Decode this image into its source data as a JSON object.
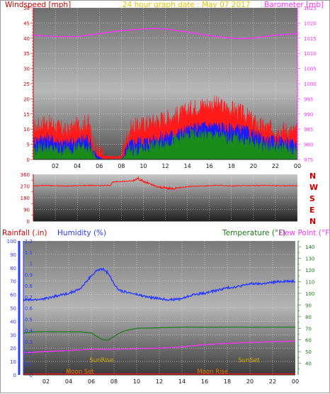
{
  "header": {
    "left_title": "Windspeed [mph]",
    "center_title": "24 hour graph date : May 07 2017",
    "right_title": "Barometer [mb]"
  },
  "colors": {
    "wind_axis": "#cc0000",
    "gust_red": "#ff1a1a",
    "wind_blue": "#1a1aff",
    "wind_green": "#1a8c1a",
    "barometer": "#ff33ff",
    "date_text": "#e6c200",
    "humidity": "#2a3aff",
    "temperature": "#1a7a1a",
    "dewpoint": "#ff33ff",
    "sun": "#d4b000",
    "moon": "#e07a00"
  },
  "chart_data": [
    {
      "type": "area",
      "name": "wind-barometer",
      "x_ticks": [
        "02",
        "04",
        "06",
        "08",
        "10",
        "12",
        "14",
        "16",
        "18",
        "20",
        "22",
        "00"
      ],
      "y_left_ticks": [
        0,
        5,
        10,
        15,
        20,
        25,
        30,
        35,
        40,
        45,
        50
      ],
      "ylim_left": [
        0,
        50
      ],
      "y_right_ticks": [
        975,
        980,
        985,
        990,
        995,
        1000,
        1005,
        1010,
        1015,
        1020,
        1025
      ],
      "ylim_right": [
        975,
        1025
      ],
      "series": [
        {
          "axis": "left",
          "x": [
            0,
            1,
            2,
            3,
            4,
            5,
            5.4,
            5.8,
            6.5,
            7.5,
            8.0,
            8.3,
            8.8,
            9.5,
            10.5,
            11.5,
            12.5,
            13.5,
            14.5,
            15.5,
            16.5,
            17.5,
            18.5,
            19.5,
            20.5,
            21.5,
            22.5,
            23.5,
            24
          ],
          "values": [
            10,
            12,
            11,
            9,
            11,
            12,
            6,
            3,
            1,
            1,
            1,
            5,
            10,
            11,
            12,
            13,
            14,
            15,
            17,
            18,
            18,
            17,
            16,
            14,
            11,
            10,
            10,
            9,
            9
          ]
        },
        {
          "axis": "left",
          "x": [
            0,
            1,
            2,
            3,
            4,
            5,
            5.4,
            5.8,
            6.5,
            7.5,
            8.0,
            8.3,
            8.8,
            9.5,
            10.5,
            11.5,
            12.5,
            13.5,
            14.5,
            15.5,
            16.5,
            17.5,
            18.5,
            19.5,
            20.5,
            21.5,
            22.5,
            23.5,
            24
          ],
          "values": [
            6,
            7,
            6,
            5,
            6,
            7,
            3,
            1,
            0,
            0,
            0,
            2,
            5,
            6,
            6,
            7,
            8,
            9,
            10,
            11,
            11,
            10,
            10,
            9,
            7,
            6,
            6,
            5,
            5
          ]
        },
        {
          "axis": "left",
          "x": [
            0,
            1,
            2,
            3,
            4,
            5,
            5.4,
            5.8,
            6.5,
            7.5,
            8.0,
            8.3,
            8.8,
            9.5,
            10.5,
            11.5,
            12.5,
            13.5,
            14.5,
            15.5,
            16.5,
            17.5,
            18.5,
            19.5,
            20.5,
            21.5,
            22.5,
            23.5,
            24
          ],
          "values": [
            3,
            4,
            3,
            3,
            4,
            4,
            2,
            0,
            0,
            0,
            0,
            1,
            3,
            3,
            4,
            5,
            6,
            7,
            8,
            8,
            8,
            7,
            7,
            6,
            5,
            4,
            4,
            3,
            3
          ]
        },
        {
          "axis": "right",
          "x": [
            0,
            2,
            4,
            6,
            8,
            10,
            11,
            12,
            14,
            16,
            18,
            19,
            20,
            22,
            24
          ],
          "values": [
            1016,
            1015.5,
            1015.5,
            1016.5,
            1017.5,
            1018,
            1018.2,
            1018,
            1017,
            1015.8,
            1015,
            1014.8,
            1015,
            1016,
            1016.5
          ]
        }
      ]
    },
    {
      "type": "line",
      "name": "wind-direction",
      "x_ticks": [
        "02",
        "04",
        "06",
        "08",
        "10",
        "12",
        "14",
        "16",
        "18",
        "20",
        "22",
        "00"
      ],
      "y_ticks": [
        0,
        90,
        180,
        270,
        360
      ],
      "ylim": [
        0,
        360
      ],
      "y_right_labels": [
        "N",
        "W",
        "S",
        "E",
        "N"
      ],
      "series": [
        {
          "x": [
            0,
            1,
            2,
            3,
            4,
            5,
            6,
            7,
            7.2,
            8,
            9,
            9.5,
            10,
            10.5,
            11,
            11.5,
            12,
            12.5,
            13,
            14,
            15,
            16,
            17,
            18,
            19,
            20,
            21,
            22,
            23,
            24
          ],
          "values": [
            270,
            275,
            272,
            270,
            272,
            275,
            273,
            275,
            300,
            305,
            310,
            330,
            305,
            290,
            270,
            260,
            255,
            250,
            255,
            265,
            270,
            272,
            275,
            270,
            272,
            273,
            275,
            272,
            273,
            272
          ]
        }
      ]
    },
    {
      "type": "line",
      "name": "humidity-temperature",
      "x_ticks": [
        "02",
        "04",
        "06",
        "08",
        "10",
        "12",
        "14",
        "16",
        "18",
        "20",
        "22",
        "00"
      ],
      "rain_ticks": [
        0,
        0.1,
        0.2,
        0.3,
        0.4,
        0.5,
        0.6,
        0.7,
        0.8,
        0.9,
        1,
        1.1,
        1.2
      ],
      "ylim_rain": [
        0,
        1.2
      ],
      "humidity_ticks": [
        0,
        10,
        20,
        30,
        40,
        50,
        60,
        70,
        80,
        90,
        100
      ],
      "ylim_humidity": [
        0,
        100
      ],
      "temp_ticks": [
        40,
        50,
        60,
        70,
        80,
        90,
        100,
        110,
        120,
        130,
        140
      ],
      "ylim_temp": [
        30,
        145
      ],
      "series": [
        {
          "name": "Humidity (%)",
          "axis": "humidity",
          "x": [
            0,
            1,
            2,
            3,
            4,
            5,
            6,
            6.5,
            7,
            7.5,
            8,
            8.5,
            9,
            10,
            11,
            12,
            13,
            14,
            15,
            16,
            17,
            18,
            19,
            20,
            21,
            22,
            23,
            24
          ],
          "values": [
            56,
            56,
            57,
            59,
            61,
            64,
            74,
            78,
            79,
            76,
            68,
            63,
            62,
            60,
            58,
            57,
            56,
            57,
            60,
            61,
            63,
            65,
            66,
            68,
            68,
            69,
            70,
            70
          ]
        },
        {
          "name": "Temperature (°F)",
          "axis": "temp",
          "x": [
            0,
            1,
            2,
            3,
            4,
            5,
            6,
            6.5,
            7,
            7.5,
            8,
            8.5,
            9,
            10,
            12,
            14,
            16,
            18,
            20,
            22,
            24
          ],
          "values": [
            66,
            67,
            67,
            67,
            67,
            67,
            66,
            63,
            60,
            60,
            63,
            66,
            68,
            70,
            70.5,
            71,
            71,
            71,
            71,
            71,
            71
          ]
        },
        {
          "name": "Dew Point (°F)",
          "axis": "temp",
          "x": [
            0,
            2,
            4,
            6,
            8,
            10,
            12,
            14,
            16,
            18,
            20,
            22,
            24
          ],
          "values": [
            49,
            50,
            51,
            52,
            52,
            52.5,
            53,
            54,
            56,
            57,
            58,
            58.5,
            59
          ]
        }
      ],
      "rainfall": {
        "values": [
          0
        ]
      },
      "annotations": [
        {
          "text": "SunRise",
          "hour": 6.9
        },
        {
          "text": "SunSet",
          "hour": 19.9
        },
        {
          "text": "Moon Set",
          "hour": 5.0
        },
        {
          "text": "Moon Rise",
          "hour": 16.7
        }
      ]
    }
  ],
  "bottom_header": {
    "rain_label": "Rainfall (.in)",
    "humidity_label": "Humidity (%)",
    "temp_label": "Temperature (°F)",
    "dew_label": "Dew Point (°F)"
  }
}
